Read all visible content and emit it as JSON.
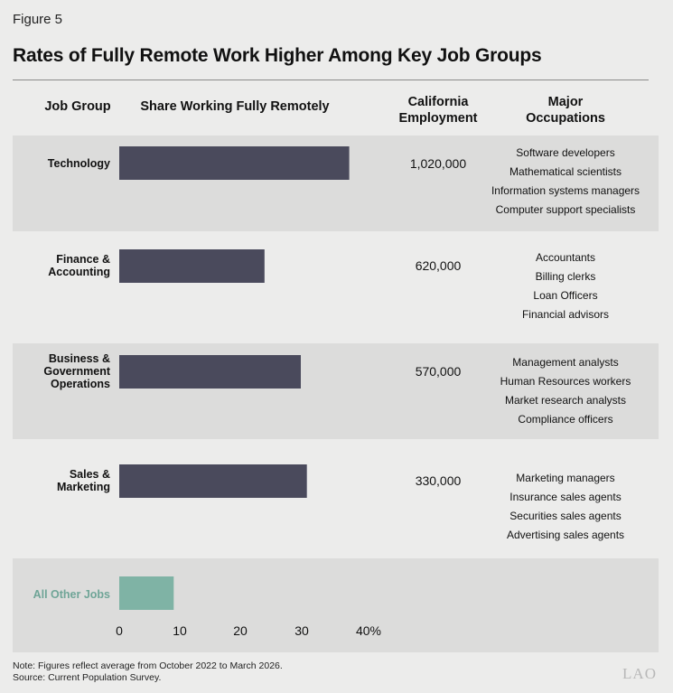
{
  "figure_label": "Figure 5",
  "title": "Rates of Fully Remote Work Higher Among Key Job Groups",
  "headers": {
    "job_group": "Job Group",
    "share": "Share Working Fully Remotely",
    "employment_l1": "California",
    "employment_l2": "Employment",
    "occupations_l1": "Major",
    "occupations_l2": "Occupations"
  },
  "colors": {
    "bar": "#4a4a5c",
    "highlight": "#7fb3a5",
    "band": "#dcdcdb",
    "background": "#ececeb"
  },
  "rows": [
    {
      "job_l1": "Technology",
      "job_l2": "",
      "job_l3": "",
      "employment": "1,020,000",
      "occupations": [
        "Software developers",
        "Mathematical scientists",
        "Information systems managers",
        "Computer support specialists"
      ]
    },
    {
      "job_l1": "Finance &",
      "job_l2": "Accounting",
      "job_l3": "",
      "employment": "620,000",
      "occupations": [
        "Accountants",
        "Billing clerks",
        "Loan Officers",
        "Financial advisors"
      ]
    },
    {
      "job_l1": "Business &",
      "job_l2": "Government",
      "job_l3": "Operations",
      "employment": "570,000",
      "occupations": [
        "Management analysts",
        "Human Resources workers",
        "Market research analysts",
        "Compliance officers"
      ]
    },
    {
      "job_l1": "Sales &",
      "job_l2": "Marketing",
      "job_l3": "",
      "employment": "330,000",
      "occupations": [
        "Marketing managers",
        "Insurance sales agents",
        "Securities sales agents",
        "Advertising sales agents"
      ]
    },
    {
      "job_l1": "All Other Jobs",
      "job_l2": "",
      "job_l3": "",
      "employment": "",
      "occupations": []
    }
  ],
  "chart_data": {
    "type": "bar",
    "orientation": "horizontal",
    "categories": [
      "Technology",
      "Finance & Accounting",
      "Business & Government Operations",
      "Sales & Marketing",
      "All Other Jobs"
    ],
    "values": [
      38,
      24,
      30,
      31,
      9
    ],
    "xlim": [
      0,
      40
    ],
    "ticks": [
      "0",
      "10",
      "20",
      "30",
      "40%"
    ],
    "title": "Share Working Fully Remotely"
  },
  "notes": {
    "note": "Note: Figures reflect average from October 2022 to March 2026.",
    "source": "Source: Current Population Survey."
  },
  "logo": "LAO"
}
